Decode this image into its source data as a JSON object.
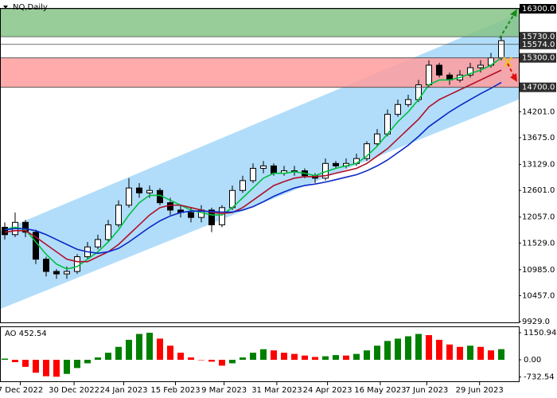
{
  "chart_data": [
    {
      "type": "candlestick",
      "title": "NQ,Daily",
      "open": [
        11850,
        11700,
        11950,
        11750,
        11200,
        10950,
        10900,
        10950,
        11250,
        11450,
        11600,
        11900,
        12300,
        12650,
        12550,
        12600,
        12350,
        12200,
        12150,
        12050,
        12200,
        11900,
        12250,
        12600,
        12800,
        13050,
        13100,
        12950,
        13000,
        13000,
        12900,
        12850,
        13150,
        13100,
        13150,
        13250,
        13550,
        13750,
        14150,
        14350,
        14450,
        14750,
        15150,
        14950,
        14850,
        14950,
        15100,
        15150,
        15300
      ],
      "high": [
        11950,
        12150,
        12000,
        11800,
        11250,
        11000,
        11050,
        11300,
        11550,
        11700,
        12000,
        12400,
        12850,
        12750,
        12700,
        12650,
        12450,
        12300,
        12250,
        12300,
        12250,
        12300,
        12700,
        12900,
        13150,
        13200,
        13150,
        13100,
        13100,
        13050,
        12950,
        13250,
        13200,
        13250,
        13350,
        13600,
        13850,
        14250,
        14450,
        14550,
        14850,
        15250,
        15200,
        15000,
        15050,
        15200,
        15250,
        15400,
        15730
      ],
      "low": [
        11600,
        11650,
        11650,
        11100,
        10850,
        10800,
        10800,
        10900,
        11200,
        11400,
        11550,
        11850,
        12250,
        12450,
        12450,
        12300,
        12100,
        12050,
        11950,
        11950,
        11750,
        11850,
        12200,
        12550,
        12750,
        12950,
        12900,
        12900,
        12900,
        12850,
        12750,
        12800,
        13050,
        13050,
        13100,
        13200,
        13500,
        13700,
        14100,
        14300,
        14400,
        14700,
        14900,
        14750,
        14800,
        14900,
        15000,
        15100,
        15250
      ],
      "close": [
        11700,
        11950,
        11750,
        11200,
        10950,
        10900,
        10950,
        11250,
        11450,
        11600,
        11900,
        12300,
        12650,
        12550,
        12600,
        12350,
        12200,
        12150,
        12050,
        12200,
        11900,
        12250,
        12600,
        12800,
        13050,
        13100,
        12950,
        13000,
        13000,
        12900,
        12850,
        13150,
        13100,
        13150,
        13250,
        13550,
        13750,
        14150,
        14350,
        14450,
        14750,
        15150,
        14950,
        14850,
        14950,
        15100,
        15150,
        15300,
        15650
      ],
      "lines": [
        {
          "color": "#00c040",
          "values": [
            11800,
            11850,
            11800,
            11550,
            11300,
            11100,
            11000,
            11050,
            11200,
            11350,
            11550,
            11800,
            12100,
            12350,
            12500,
            12500,
            12400,
            12300,
            12200,
            12150,
            12100,
            12100,
            12250,
            12450,
            12650,
            12850,
            12950,
            12950,
            12980,
            12950,
            12900,
            12980,
            13050,
            13100,
            13150,
            13300,
            13500,
            13750,
            14000,
            14200,
            14450,
            14750,
            14850,
            14850,
            14900,
            14980,
            15050,
            15150,
            15300
          ]
        },
        {
          "color": "#b0102a",
          "values": [
            11750,
            11780,
            11780,
            11650,
            11500,
            11350,
            11200,
            11150,
            11150,
            11250,
            11350,
            11500,
            11700,
            11900,
            12100,
            12250,
            12300,
            12300,
            12250,
            12200,
            12150,
            12130,
            12150,
            12250,
            12400,
            12550,
            12700,
            12780,
            12850,
            12880,
            12880,
            12900,
            12950,
            13000,
            13050,
            13150,
            13300,
            13450,
            13650,
            13850,
            14050,
            14300,
            14450,
            14550,
            14650,
            14750,
            14850,
            14950,
            15050
          ]
        },
        {
          "color": "#0a28c8",
          "values": [
            11800,
            11820,
            11820,
            11780,
            11700,
            11600,
            11500,
            11400,
            11350,
            11320,
            11350,
            11420,
            11550,
            11700,
            11850,
            11980,
            12080,
            12150,
            12180,
            12180,
            12170,
            12160,
            12160,
            12200,
            12270,
            12370,
            12480,
            12570,
            12650,
            12700,
            12730,
            12770,
            12820,
            12870,
            12920,
            13000,
            13100,
            13220,
            13370,
            13520,
            13700,
            13900,
            14050,
            14200,
            14330,
            14450,
            14570,
            14680,
            14800
          ]
        }
      ],
      "channel": {
        "upper": [
          11778,
          16203
        ],
        "lower": [
          10190,
          14452
        ],
        "color": "#a9d9f9"
      },
      "zones": [
        {
          "from": 15730,
          "to": 16300,
          "color": "#86c386"
        },
        {
          "from": 14700,
          "to": 15300,
          "color": "#ff9c9c"
        }
      ],
      "levels": [
        {
          "value": 16300,
          "label": "16300.0",
          "color": "#000000"
        },
        {
          "value": 15730,
          "label": "15730.0",
          "color": "#2e2e2e"
        },
        {
          "value": 15574,
          "label": "15574.0",
          "color": "#2e2e2e"
        },
        {
          "value": 15300,
          "label": "15300.0",
          "color": "#2e2e2e"
        },
        {
          "value": 14700,
          "label": "14700.0",
          "color": "#2e2e2e"
        }
      ],
      "ylim": [
        9913,
        16316
      ],
      "yticks": [
        {
          "value": 14201,
          "label": "14201.0"
        },
        {
          "value": 13675,
          "label": "13675.0"
        },
        {
          "value": 13129,
          "label": "13129.0"
        },
        {
          "value": 12601,
          "label": "12601.0"
        },
        {
          "value": 12057,
          "label": "12057.0"
        },
        {
          "value": 11529,
          "label": "11529.0"
        },
        {
          "value": 10985,
          "label": "10985.0"
        },
        {
          "value": 10457,
          "label": "10457.0"
        },
        {
          "value": 9929,
          "label": "9929.0"
        }
      ],
      "xticks": [
        {
          "value": 1.5,
          "label": "7 Dec 2022"
        },
        {
          "value": 6.7,
          "label": "30 Dec 2022"
        },
        {
          "value": 11.5,
          "label": "24 Jan 2023"
        },
        {
          "value": 16.5,
          "label": "15 Feb 2023"
        },
        {
          "value": 21.2,
          "label": "9 Mar 2023"
        },
        {
          "value": 26.3,
          "label": "31 Mar 2023"
        },
        {
          "value": 31.2,
          "label": "24 Apr 2023"
        },
        {
          "value": 36.3,
          "label": "16 May 2023"
        },
        {
          "value": 40.8,
          "label": "7 Jun 2023"
        },
        {
          "value": 45.9,
          "label": "29 Jun 2023"
        }
      ]
    },
    {
      "type": "histogram",
      "title": "AO",
      "values": [
        50,
        -100,
        -300,
        -550,
        -700,
        -720,
        -600,
        -350,
        -150,
        100,
        300,
        550,
        850,
        1100,
        1150,
        900,
        600,
        300,
        100,
        0,
        -80,
        -250,
        -150,
        100,
        300,
        450,
        400,
        300,
        250,
        180,
        120,
        150,
        200,
        180,
        250,
        400,
        600,
        800,
        900,
        1000,
        1100,
        1050,
        850,
        650,
        550,
        600,
        550,
        400,
        452.54
      ],
      "colors": {
        "up": "#008000",
        "down": "#ff0000"
      },
      "ylim": [
        -948,
        1422
      ],
      "yticks": [
        1150.94,
        {
          "value": 0,
          "label": "0.00"
        },
        -732.54
      ]
    }
  ]
}
